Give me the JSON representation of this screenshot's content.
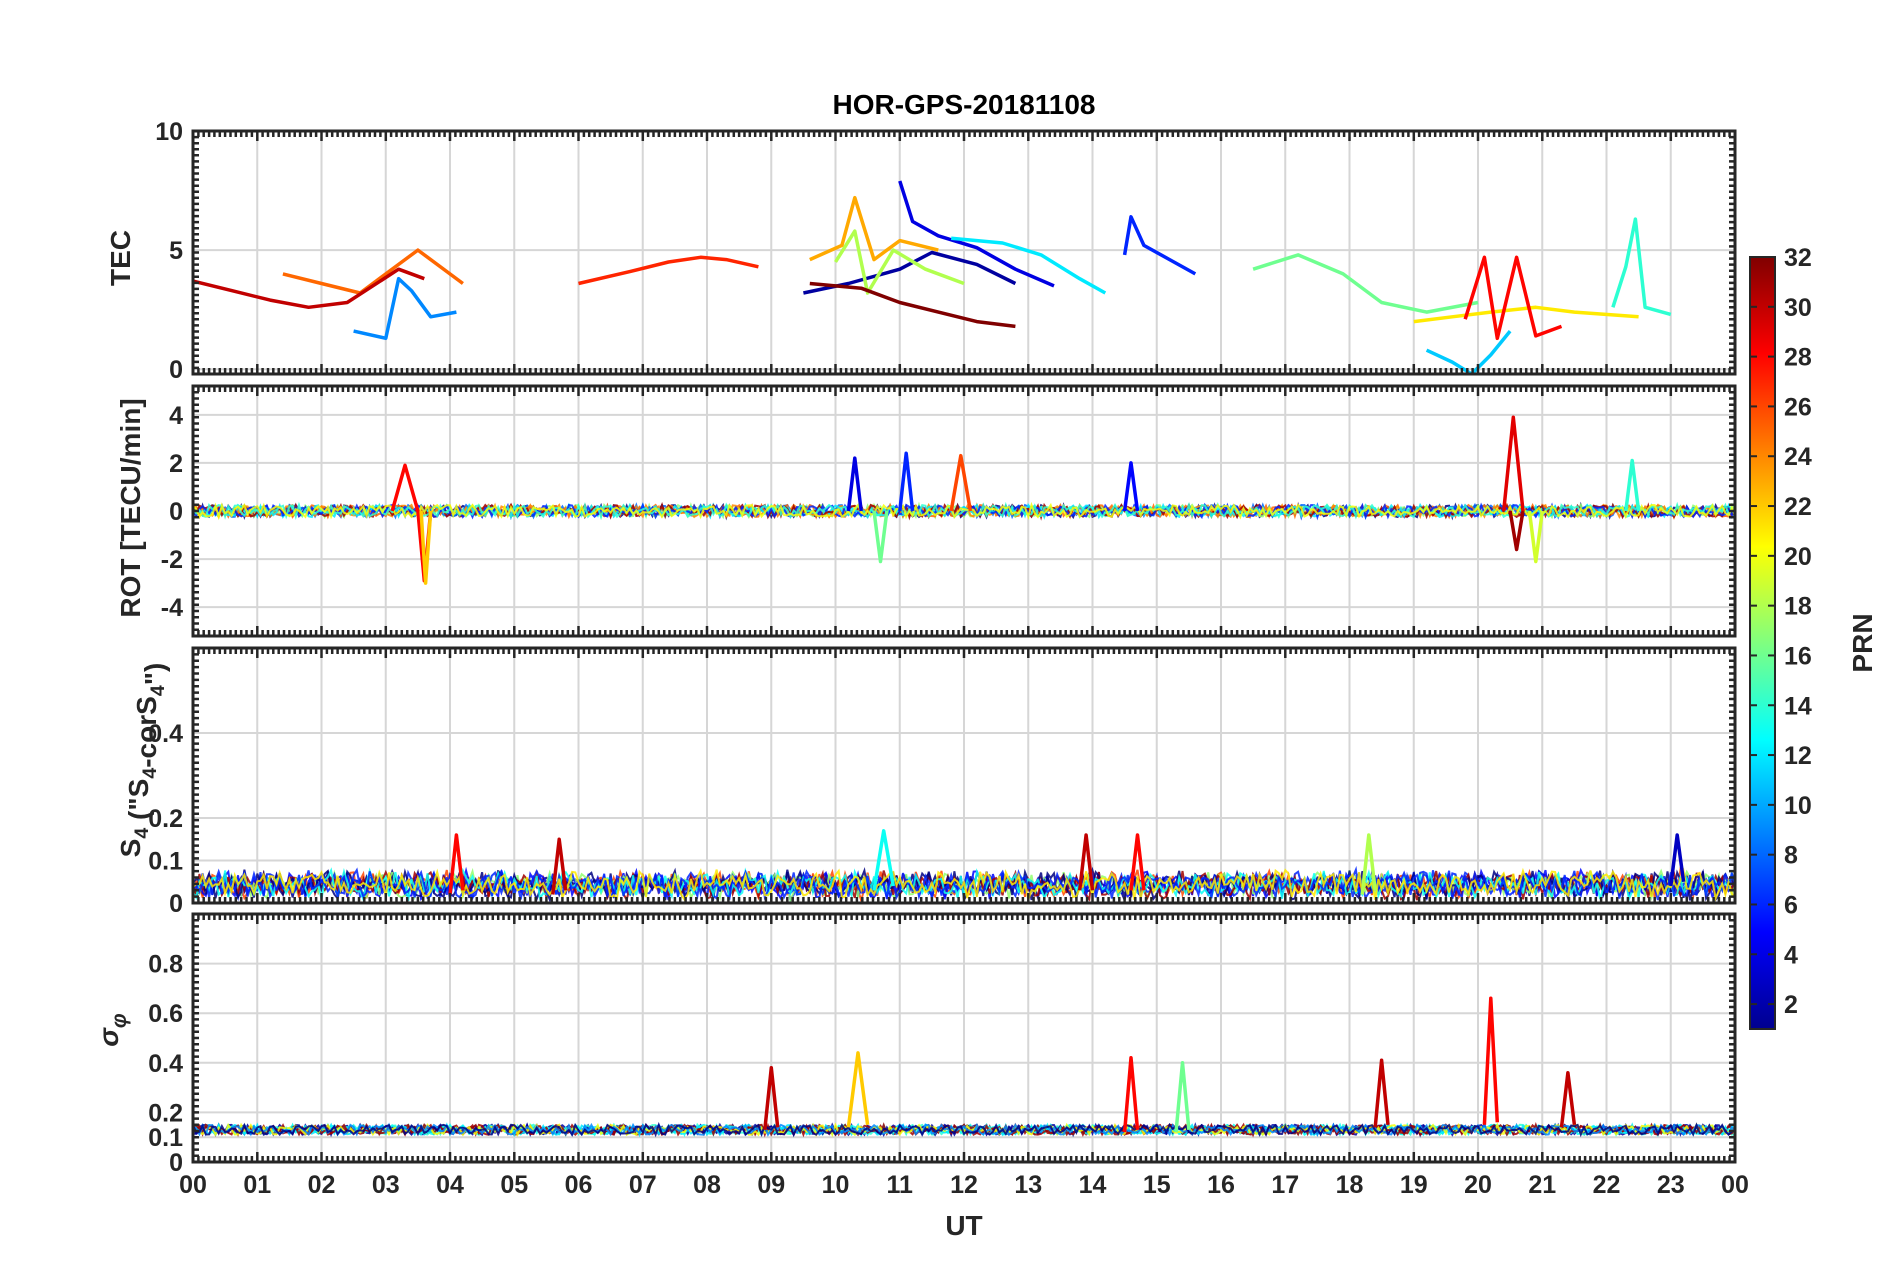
{
  "chart_data": {
    "type": "line",
    "title": "HOR-GPS-20181108",
    "xlabel": "UT",
    "x_ticks": [
      "00",
      "01",
      "02",
      "03",
      "04",
      "05",
      "06",
      "07",
      "08",
      "09",
      "10",
      "11",
      "12",
      "13",
      "14",
      "15",
      "16",
      "17",
      "18",
      "19",
      "20",
      "21",
      "22",
      "23",
      "00"
    ],
    "xlim": [
      0,
      24
    ],
    "grid": true,
    "colorbar": {
      "label": "PRN",
      "colormap": "jet",
      "range": [
        1,
        32
      ],
      "ticks": [
        2,
        4,
        6,
        8,
        10,
        12,
        14,
        16,
        18,
        20,
        22,
        24,
        26,
        28,
        30,
        32
      ]
    },
    "panels": [
      {
        "ylabel": "TEC",
        "ylim": [
          -0.2,
          10
        ],
        "yticks": [
          0,
          5,
          10
        ],
        "series": [
          {
            "prn": 2,
            "x": [
              9.5,
              10.2,
              11.0,
              11.5,
              12.2,
              12.8
            ],
            "y": [
              3.2,
              3.6,
              4.2,
              4.9,
              4.4,
              3.6
            ]
          },
          {
            "prn": 4,
            "x": [
              11.0,
              11.2,
              11.6,
              12.2,
              12.8,
              13.4
            ],
            "y": [
              7.9,
              6.2,
              5.6,
              5.1,
              4.2,
              3.5
            ]
          },
          {
            "prn": 6,
            "x": [
              14.5,
              14.6,
              14.8,
              15.2,
              15.6
            ],
            "y": [
              4.8,
              6.4,
              5.2,
              4.6,
              4.0
            ]
          },
          {
            "prn": 9,
            "x": [
              2.5,
              3.0,
              3.2,
              3.4,
              3.7,
              4.1
            ],
            "y": [
              1.6,
              1.3,
              3.8,
              3.3,
              2.2,
              2.4
            ]
          },
          {
            "prn": 11,
            "x": [
              19.2,
              19.6,
              19.9,
              20.2,
              20.5
            ],
            "y": [
              0.8,
              0.3,
              -0.2,
              0.6,
              1.6
            ]
          },
          {
            "prn": 12,
            "x": [
              11.8,
              12.6,
              13.2,
              13.8,
              14.2
            ],
            "y": [
              5.5,
              5.3,
              4.8,
              3.8,
              3.2
            ]
          },
          {
            "prn": 14,
            "x": [
              22.1,
              22.3,
              22.45,
              22.6,
              23.0
            ],
            "y": [
              2.6,
              4.3,
              6.3,
              2.6,
              2.3
            ]
          },
          {
            "prn": 16,
            "x": [
              16.5,
              17.2,
              17.9,
              18.5,
              19.2,
              20.0
            ],
            "y": [
              4.2,
              4.8,
              4.0,
              2.8,
              2.4,
              2.8
            ]
          },
          {
            "prn": 18,
            "x": [
              10.0,
              10.3,
              10.5,
              10.9,
              11.4,
              12.0
            ],
            "y": [
              4.5,
              5.8,
              3.2,
              5.0,
              4.2,
              3.6
            ]
          },
          {
            "prn": 21,
            "x": [
              19.0,
              19.6,
              20.2,
              20.9,
              21.5,
              22.5
            ],
            "y": [
              2.0,
              2.2,
              2.4,
              2.6,
              2.4,
              2.2
            ]
          },
          {
            "prn": 23,
            "x": [
              9.6,
              10.1,
              10.3,
              10.6,
              11.0,
              11.6
            ],
            "y": [
              4.6,
              5.2,
              7.2,
              4.6,
              5.4,
              5.0
            ]
          },
          {
            "prn": 25,
            "x": [
              1.4,
              2.0,
              2.6,
              3.2,
              3.5,
              4.2
            ],
            "y": [
              4.0,
              3.6,
              3.2,
              4.4,
              5.0,
              3.6
            ]
          },
          {
            "prn": 27,
            "x": [
              6.0,
              6.8,
              7.4,
              7.9,
              8.3,
              8.8
            ],
            "y": [
              3.6,
              4.1,
              4.5,
              4.7,
              4.6,
              4.3
            ]
          },
          {
            "prn": 28,
            "x": [
              19.8,
              20.1,
              20.3,
              20.6,
              20.9,
              21.3
            ],
            "y": [
              2.1,
              4.7,
              1.3,
              4.7,
              1.4,
              1.8
            ]
          },
          {
            "prn": 30,
            "x": [
              0.0,
              0.6,
              1.2,
              1.8,
              2.4,
              3.2,
              3.6
            ],
            "y": [
              3.7,
              3.3,
              2.9,
              2.6,
              2.8,
              4.2,
              3.8
            ]
          },
          {
            "prn": 32,
            "x": [
              9.6,
              10.4,
              11.0,
              11.6,
              12.2,
              12.8
            ],
            "y": [
              3.6,
              3.4,
              2.8,
              2.4,
              2.0,
              1.8
            ]
          }
        ]
      },
      {
        "ylabel": "ROT [TECU/min]",
        "ylim": [
          -5.2,
          5.2
        ],
        "yticks": [
          -4,
          -2,
          0,
          2,
          4
        ],
        "series": [
          {
            "prn": 28,
            "x": [
              3.1,
              3.3,
              3.5,
              3.6,
              3.7
            ],
            "y": [
              0.0,
              1.9,
              0.0,
              -2.9,
              0.0
            ]
          },
          {
            "prn": 22,
            "x": [
              3.55,
              3.62,
              3.7
            ],
            "y": [
              0.0,
              -3.0,
              0.0
            ]
          },
          {
            "prn": 4,
            "x": [
              10.2,
              10.3,
              10.4
            ],
            "y": [
              0.0,
              2.2,
              0.0
            ]
          },
          {
            "prn": 16,
            "x": [
              10.6,
              10.7,
              10.8
            ],
            "y": [
              0.0,
              -2.1,
              0.0
            ]
          },
          {
            "prn": 6,
            "x": [
              11.0,
              11.1,
              11.2
            ],
            "y": [
              0.0,
              2.4,
              0.0
            ]
          },
          {
            "prn": 26,
            "x": [
              11.8,
              11.95,
              12.1
            ],
            "y": [
              0.0,
              2.3,
              0.0
            ]
          },
          {
            "prn": 5,
            "x": [
              14.5,
              14.6,
              14.7
            ],
            "y": [
              0.0,
              2.0,
              0.0
            ]
          },
          {
            "prn": 29,
            "x": [
              20.4,
              20.55,
              20.7
            ],
            "y": [
              0.0,
              3.9,
              0.0
            ]
          },
          {
            "prn": 31,
            "x": [
              20.5,
              20.6,
              20.7
            ],
            "y": [
              0.0,
              -1.6,
              0.0
            ]
          },
          {
            "prn": 19,
            "x": [
              20.8,
              20.9,
              21.0
            ],
            "y": [
              0.0,
              -2.1,
              0.0
            ]
          },
          {
            "prn": 14,
            "x": [
              22.3,
              22.4,
              22.5
            ],
            "y": [
              0.0,
              2.1,
              0.0
            ]
          }
        ]
      },
      {
        "ylabel": "S_4 (\"S_4-corS_4\")",
        "ylim": [
          0,
          0.6
        ],
        "yticks": [
          0,
          0.1,
          0.2,
          0.4
        ],
        "series": [
          {
            "prn": 28,
            "x": [
              4.0,
              4.1,
              4.2
            ],
            "y": [
              0.02,
              0.16,
              0.03
            ]
          },
          {
            "prn": 30,
            "x": [
              5.6,
              5.7,
              5.8
            ],
            "y": [
              0.02,
              0.15,
              0.03
            ]
          },
          {
            "prn": 13,
            "x": [
              10.6,
              10.75,
              10.9
            ],
            "y": [
              0.03,
              0.17,
              0.04
            ]
          },
          {
            "prn": 30,
            "x": [
              13.8,
              13.9,
              14.0
            ],
            "y": [
              0.03,
              0.16,
              0.03
            ]
          },
          {
            "prn": 28,
            "x": [
              14.6,
              14.7,
              14.8
            ],
            "y": [
              0.03,
              0.16,
              0.03
            ]
          },
          {
            "prn": 18,
            "x": [
              18.2,
              18.3,
              18.4
            ],
            "y": [
              0.02,
              0.16,
              0.03
            ]
          },
          {
            "prn": 3,
            "x": [
              23.0,
              23.1,
              23.2
            ],
            "y": [
              0.04,
              0.16,
              0.05
            ]
          }
        ]
      },
      {
        "ylabel": "σ_φ",
        "ylim": [
          0,
          1.0
        ],
        "yticks": [
          0,
          0.1,
          0.2,
          0.4,
          0.6,
          0.8
        ],
        "series": [
          {
            "prn": 30,
            "x": [
              8.9,
              9.0,
              9.1
            ],
            "y": [
              0.13,
              0.38,
              0.14
            ]
          },
          {
            "prn": 22,
            "x": [
              10.2,
              10.35,
              10.5
            ],
            "y": [
              0.14,
              0.44,
              0.15
            ]
          },
          {
            "prn": 28,
            "x": [
              14.5,
              14.6,
              14.7
            ],
            "y": [
              0.12,
              0.42,
              0.13
            ]
          },
          {
            "prn": 16,
            "x": [
              15.3,
              15.4,
              15.5
            ],
            "y": [
              0.12,
              0.4,
              0.13
            ]
          },
          {
            "prn": 30,
            "x": [
              18.4,
              18.5,
              18.6
            ],
            "y": [
              0.14,
              0.41,
              0.15
            ]
          },
          {
            "prn": 28,
            "x": [
              20.1,
              20.2,
              20.3
            ],
            "y": [
              0.15,
              0.66,
              0.16
            ]
          },
          {
            "prn": 30,
            "x": [
              21.3,
              21.4,
              21.5
            ],
            "y": [
              0.14,
              0.36,
              0.15
            ]
          }
        ]
      }
    ]
  }
}
